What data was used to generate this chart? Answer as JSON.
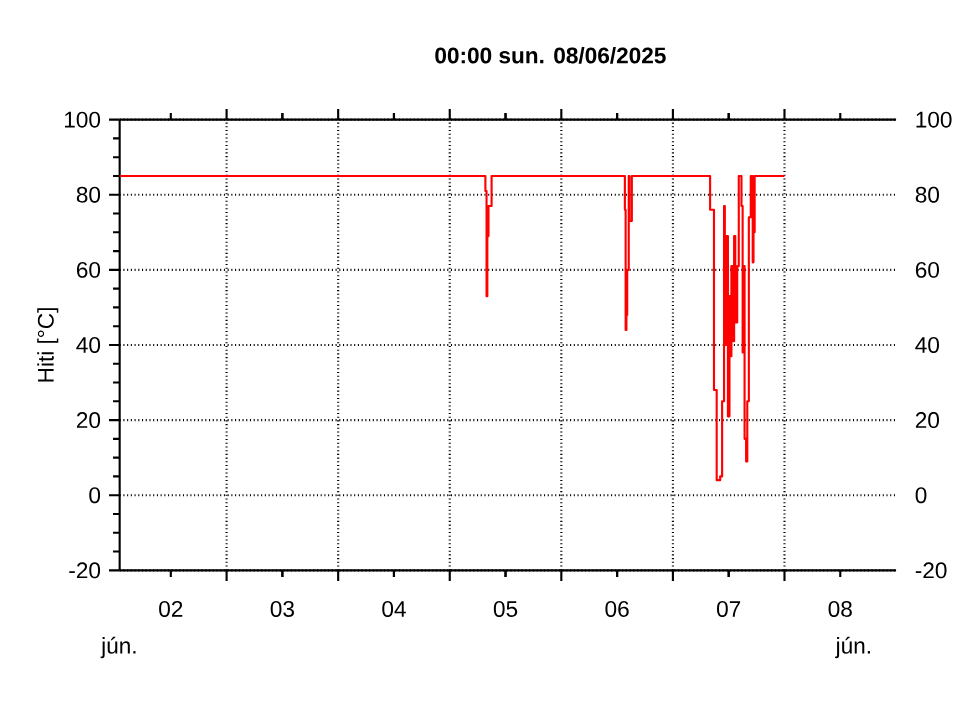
{
  "chart_data": {
    "type": "step",
    "title": "00:00   sun.  08/06/2025",
    "ylabel": "Hiti [°C]",
    "annotations": [
      "jún.",
      "jún."
    ],
    "x": [
      "2025-06-02T01:00",
      "2025-06-05T07:40",
      "2025-06-05T07:55",
      "2025-06-05T08:05",
      "2025-06-05T08:20",
      "2025-06-05T09:00",
      "2025-06-06T13:40",
      "2025-06-06T13:50",
      "2025-06-06T14:00",
      "2025-06-06T14:10",
      "2025-06-06T14:30",
      "2025-06-06T14:40",
      "2025-06-06T15:10",
      "2025-06-07T08:00",
      "2025-06-07T08:50",
      "2025-06-07T09:25",
      "2025-06-07T10:10",
      "2025-06-07T10:35",
      "2025-06-07T11:00",
      "2025-06-07T11:10",
      "2025-06-07T11:25",
      "2025-06-07T11:50",
      "2025-06-07T12:10",
      "2025-06-07T12:15",
      "2025-06-07T12:35",
      "2025-06-07T13:00",
      "2025-06-07T13:10",
      "2025-06-07T13:25",
      "2025-06-07T13:50",
      "2025-06-07T14:10",
      "2025-06-07T14:45",
      "2025-06-07T15:00",
      "2025-06-07T15:20",
      "2025-06-07T15:25",
      "2025-06-07T15:45",
      "2025-06-07T16:00",
      "2025-06-07T16:20",
      "2025-06-07T16:45",
      "2025-06-07T17:10",
      "2025-06-07T17:20",
      "2025-06-07T17:35",
      "2025-06-08T00:00"
    ],
    "series": [
      {
        "color": "#ff0000",
        "values": [
          85,
          81,
          53,
          69,
          77,
          85,
          76,
          44,
          48,
          60,
          85,
          73,
          85,
          76,
          28,
          4,
          5,
          25,
          77,
          40,
          69,
          21,
          53,
          37,
          61,
          41,
          69,
          46,
          61,
          85,
          77,
          38,
          61,
          15,
          9,
          25,
          74,
          85,
          62,
          70,
          85,
          85
        ]
      }
    ],
    "xlim": [
      "2025-06-02T01:00",
      "2025-06-09T00:00"
    ],
    "xticks": [
      {
        "value": "2025-06-02T12:00",
        "label": "02"
      },
      {
        "value": "2025-06-03T00:00",
        "label": null
      },
      {
        "value": "2025-06-03T12:00",
        "label": "03"
      },
      {
        "value": "2025-06-04T00:00",
        "label": null
      },
      {
        "value": "2025-06-04T12:00",
        "label": "04"
      },
      {
        "value": "2025-06-05T00:00",
        "label": null
      },
      {
        "value": "2025-06-05T12:00",
        "label": "05"
      },
      {
        "value": "2025-06-06T00:00",
        "label": null
      },
      {
        "value": "2025-06-06T12:00",
        "label": "06"
      },
      {
        "value": "2025-06-07T00:00",
        "label": null
      },
      {
        "value": "2025-06-07T12:00",
        "label": "07"
      },
      {
        "value": "2025-06-08T00:00",
        "label": null
      },
      {
        "value": "2025-06-08T12:00",
        "label": "08"
      }
    ],
    "ylim": [
      -20,
      100
    ],
    "yticks": [
      -20,
      0,
      20,
      40,
      60,
      80,
      100
    ],
    "y2lim": [
      -20,
      100
    ],
    "y2ticks": [
      -20,
      0,
      20,
      40,
      60,
      80,
      100
    ],
    "grid": true
  }
}
